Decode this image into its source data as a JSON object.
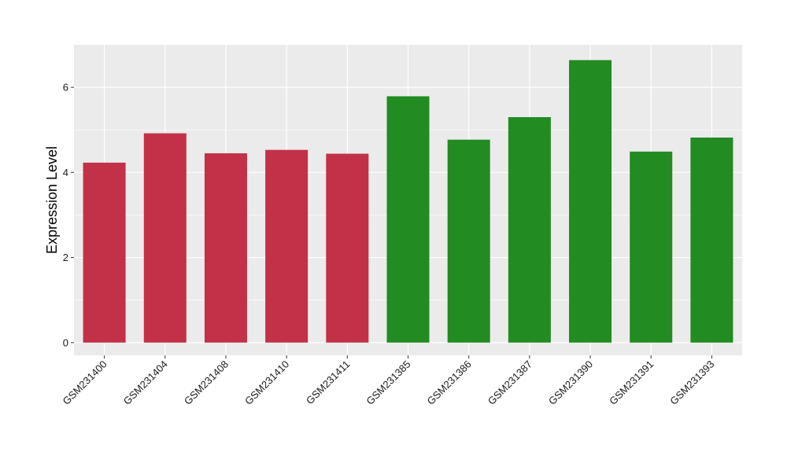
{
  "chart_data": {
    "type": "bar",
    "title": "",
    "xlabel": "",
    "ylabel": "Expression Level",
    "categories": [
      "GSM231400",
      "GSM231404",
      "GSM231408",
      "GSM231410",
      "GSM231411",
      "GSM231385",
      "GSM231386",
      "GSM231387",
      "GSM231390",
      "GSM231391",
      "GSM231393"
    ],
    "values": [
      4.23,
      4.92,
      4.45,
      4.53,
      4.44,
      5.79,
      4.77,
      5.3,
      6.64,
      4.49,
      4.82
    ],
    "groups": [
      1,
      1,
      1,
      1,
      1,
      2,
      2,
      2,
      2,
      2,
      2
    ],
    "group_colors": [
      "#C23147",
      "#228B22"
    ],
    "ylim": [
      -0.3,
      7.0
    ],
    "yticks": [
      0,
      2,
      4,
      6
    ],
    "grid": true,
    "legend": "none",
    "panel_background": "#EBEBEB",
    "grid_color": "#FFFFFF"
  }
}
